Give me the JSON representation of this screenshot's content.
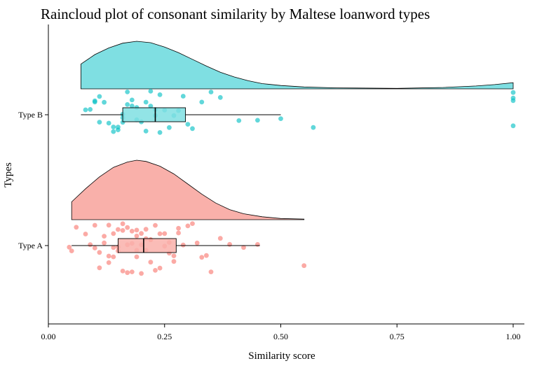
{
  "chart_data": {
    "type": "raincloud",
    "title": "Raincloud plot of consonant similarity by Maltese loanword types",
    "xlabel": "Similarity score",
    "ylabel": "Types",
    "xlim": [
      0.0,
      1.0
    ],
    "x_ticks": [
      "0.00",
      "0.25",
      "0.50",
      "0.75",
      "1.00"
    ],
    "grid": false,
    "colors": {
      "Type A": "#f8766d",
      "Type B": "#00bfc4",
      "Type A fill": "#f9b0aa",
      "Type B fill": "#7fdfe2"
    },
    "series": [
      {
        "name": "Type B",
        "box": {
          "min": 0.07,
          "q1": 0.16,
          "median": 0.23,
          "q3": 0.295,
          "max": 0.5
        },
        "density_range": [
          0.07,
          1.0
        ],
        "density": [
          [
            0.07,
            0.52
          ],
          [
            0.1,
            0.72
          ],
          [
            0.13,
            0.86
          ],
          [
            0.16,
            0.96
          ],
          [
            0.19,
            1.0
          ],
          [
            0.22,
            0.97
          ],
          [
            0.25,
            0.88
          ],
          [
            0.28,
            0.76
          ],
          [
            0.31,
            0.62
          ],
          [
            0.34,
            0.48
          ],
          [
            0.37,
            0.35
          ],
          [
            0.4,
            0.25
          ],
          [
            0.43,
            0.17
          ],
          [
            0.46,
            0.11
          ],
          [
            0.5,
            0.07
          ],
          [
            0.55,
            0.04
          ],
          [
            0.62,
            0.02
          ],
          [
            0.75,
            0.01
          ],
          [
            0.85,
            0.03
          ],
          [
            0.92,
            0.06
          ],
          [
            0.96,
            0.09
          ],
          [
            1.0,
            0.13
          ]
        ],
        "points": [
          0.08,
          0.09,
          0.1,
          0.1,
          0.11,
          0.11,
          0.12,
          0.13,
          0.14,
          0.14,
          0.15,
          0.15,
          0.16,
          0.16,
          0.16,
          0.17,
          0.17,
          0.18,
          0.18,
          0.19,
          0.19,
          0.2,
          0.21,
          0.21,
          0.22,
          0.22,
          0.23,
          0.23,
          0.24,
          0.24,
          0.25,
          0.26,
          0.27,
          0.28,
          0.29,
          0.3,
          0.31,
          0.33,
          0.35,
          0.37,
          0.41,
          0.45,
          0.5,
          0.57,
          1.0,
          1.0,
          1.0,
          1.0
        ]
      },
      {
        "name": "Type A",
        "box": {
          "min": 0.05,
          "q1": 0.15,
          "median": 0.205,
          "q3": 0.275,
          "max": 0.455
        },
        "density_range": [
          0.05,
          0.55
        ],
        "density": [
          [
            0.05,
            0.3
          ],
          [
            0.08,
            0.52
          ],
          [
            0.11,
            0.72
          ],
          [
            0.14,
            0.88
          ],
          [
            0.17,
            0.97
          ],
          [
            0.19,
            1.0
          ],
          [
            0.21,
            0.98
          ],
          [
            0.24,
            0.9
          ],
          [
            0.27,
            0.77
          ],
          [
            0.3,
            0.6
          ],
          [
            0.33,
            0.43
          ],
          [
            0.36,
            0.28
          ],
          [
            0.39,
            0.17
          ],
          [
            0.42,
            0.1
          ],
          [
            0.46,
            0.05
          ],
          [
            0.5,
            0.02
          ],
          [
            0.55,
            0.01
          ]
        ],
        "points": [
          0.045,
          0.05,
          0.06,
          0.08,
          0.09,
          0.1,
          0.1,
          0.11,
          0.11,
          0.12,
          0.12,
          0.13,
          0.13,
          0.13,
          0.14,
          0.14,
          0.14,
          0.15,
          0.15,
          0.15,
          0.16,
          0.16,
          0.16,
          0.17,
          0.17,
          0.17,
          0.18,
          0.18,
          0.18,
          0.19,
          0.19,
          0.19,
          0.19,
          0.2,
          0.2,
          0.2,
          0.21,
          0.21,
          0.21,
          0.22,
          0.22,
          0.22,
          0.23,
          0.23,
          0.24,
          0.24,
          0.25,
          0.25,
          0.26,
          0.26,
          0.27,
          0.27,
          0.28,
          0.28,
          0.29,
          0.3,
          0.31,
          0.32,
          0.33,
          0.34,
          0.35,
          0.37,
          0.39,
          0.42,
          0.45,
          0.55
        ]
      }
    ]
  }
}
